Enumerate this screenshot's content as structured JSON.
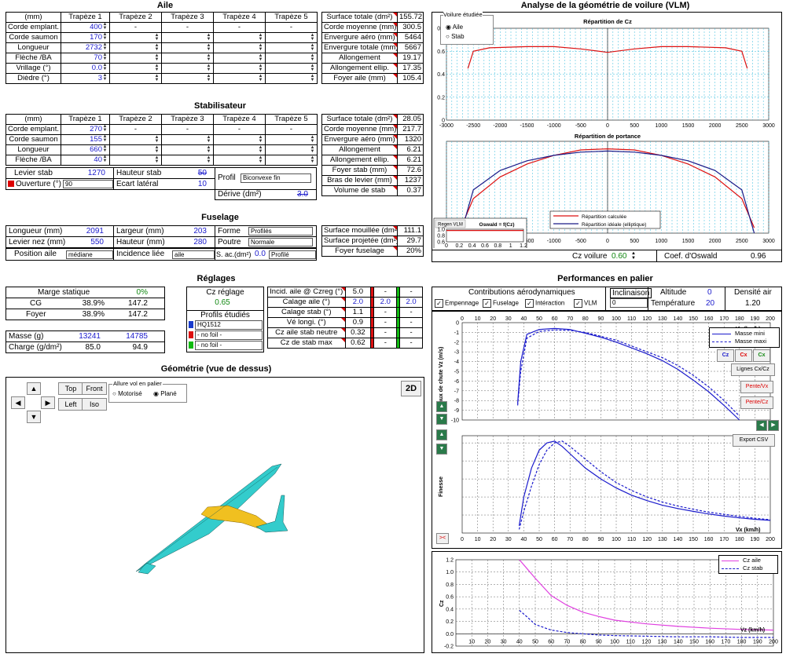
{
  "aile": {
    "title": "Aile",
    "header": [
      "(mm)",
      "Trapèze 1",
      "Trapèze 2",
      "Trapèze 3",
      "Trapèze 4",
      "Trapèze 5"
    ],
    "rows": [
      {
        "label": "Corde emplant.",
        "t1": "400",
        "t2": "-",
        "t3": "-",
        "t4": "-",
        "t5": "-"
      },
      {
        "label": "Corde saumon",
        "t1": "170",
        "t2": "",
        "t3": "",
        "t4": "",
        "t5": ""
      },
      {
        "label": "Longueur",
        "t1": "2732",
        "t2": "",
        "t3": "",
        "t4": "",
        "t5": ""
      },
      {
        "label": "Flèche /BA",
        "t1": "70",
        "t2": "",
        "t3": "",
        "t4": "",
        "t5": ""
      },
      {
        "label": "Vrillage (°)",
        "t1": "0.0",
        "t2": "",
        "t3": "",
        "t4": "",
        "t5": ""
      },
      {
        "label": "Dièdre (°)",
        "t1": "3",
        "t2": "",
        "t3": "",
        "t4": "",
        "t5": ""
      }
    ],
    "stats": [
      {
        "label": "Surface totale (dm²)",
        "value": "155.72"
      },
      {
        "label": "Corde moyenne (mm)",
        "value": "300.5"
      },
      {
        "label": "Envergure aéro (mm)",
        "value": "5464"
      },
      {
        "label": "Envergure totale (mm)",
        "value": "5667"
      },
      {
        "label": "Allongement",
        "value": "19.17"
      },
      {
        "label": "Allongement ellip.",
        "value": "17.35"
      },
      {
        "label": "Foyer aile (mm)",
        "value": "105.4"
      }
    ]
  },
  "stab": {
    "title": "Stabilisateur",
    "header": [
      "(mm)",
      "Trapèze 1",
      "Trapèze 2",
      "Trapèze 3",
      "Trapèze 4",
      "Trapèze 5"
    ],
    "rows": [
      {
        "label": "Corde emplant.",
        "t1": "270",
        "t2": "-",
        "t3": "-",
        "t4": "-",
        "t5": "-"
      },
      {
        "label": "Corde saumon",
        "t1": "155"
      },
      {
        "label": "Longueur",
        "t1": "660"
      },
      {
        "label": "Flèche /BA",
        "t1": "40"
      }
    ],
    "levier_label": "Levier stab",
    "levier_value": "1270",
    "hauteur_label": "Hauteur stab",
    "hauteur_value": "50",
    "ouverture_label": "Ouverture (°)",
    "ouverture_value": "90",
    "ecart_label": "Ecart latéral",
    "ecart_value": "10",
    "profil_label": "Profil",
    "profil_value": "Biconvexe fin",
    "derive_label": "Dérive (dm²)",
    "derive_value": "3.0",
    "stats": [
      {
        "label": "Surface totale (dm²)",
        "value": "28.05"
      },
      {
        "label": "Corde moyenne (mm)",
        "value": "217.7"
      },
      {
        "label": "Envergure aéro (mm)",
        "value": "1320"
      },
      {
        "label": "Allongement",
        "value": "6.21"
      },
      {
        "label": "Allongement ellip.",
        "value": "6.21"
      },
      {
        "label": "Foyer stab (mm)",
        "value": "72.6"
      },
      {
        "label": "Bras de levier (mm)",
        "value": "1237"
      },
      {
        "label": "Volume de stab",
        "value": "0.37"
      }
    ]
  },
  "fuselage": {
    "title": "Fuselage",
    "longueur_label": "Longueur (mm)",
    "longueur_value": "2091",
    "largeur_label": "Largeur (mm)",
    "largeur_value": "203",
    "forme_label": "Forme",
    "forme_value": "Profilés",
    "levier_nez_label": "Levier nez (mm)",
    "levier_nez_value": "550",
    "hauteur_label": "Hauteur (mm)",
    "hauteur_value": "280",
    "poutre_label": "Poutre",
    "poutre_value": "Normale",
    "position_label": "Position aile",
    "position_value": "médiane",
    "incidence_label": "Incidence liée",
    "incidence_value": "aile",
    "sac_label": "S. ac.(dm²)",
    "sac_value": "0.0",
    "sac_select": "Profilé",
    "stats": [
      {
        "label": "Surface mouillée (dm²)",
        "value": "111.1"
      },
      {
        "label": "Surface projetée (dm²)",
        "value": "29.7"
      },
      {
        "label": "Foyer fuselage",
        "value": "20%"
      }
    ]
  },
  "reglages": {
    "title": "Réglages",
    "marge_label": "Marge statique",
    "marge_value": "0%",
    "cg_label": "CG",
    "cg_pct": "38.9%",
    "cg_mm": "147.2",
    "foyer_label": "Foyer",
    "foyer_pct": "38.9%",
    "foyer_mm": "147.2",
    "masse_label": "Masse (g)",
    "masse_min": "13241",
    "masse_max": "14785",
    "charge_label": "Charge (g/dm²)",
    "charge_min": "85.0",
    "charge_max": "94.9",
    "cz_reglage_label": "Cz réglage",
    "cz_reglage_value": "0.65",
    "profils_label": "Profils étudiés",
    "profils": [
      {
        "name": "HQ1512",
        "color": "#1a3ccc"
      },
      {
        "name": "- no foil -",
        "color": "#dd1111"
      },
      {
        "name": "- no foil -",
        "color": "#11bb11"
      }
    ],
    "params": [
      {
        "label": "Incid. aile @ Czreg (°)",
        "v1": "5.0",
        "v2": "-",
        "v3": "-"
      },
      {
        "label": "Calage aile (°)",
        "v1": "2.0",
        "v2": "2.0",
        "v3": "2.0"
      },
      {
        "label": "Calage stab (°)",
        "v1": "1.1",
        "v2": "-",
        "v3": "-"
      },
      {
        "label": "Vé longi. (°)",
        "v1": "0.9",
        "v2": "-",
        "v3": "-"
      },
      {
        "label": "Cz aile stab neutre",
        "v1": "0.32",
        "v2": "-",
        "v3": "-"
      },
      {
        "label": "Cz de stab max",
        "v1": "0.62",
        "v2": "-",
        "v3": "-"
      }
    ]
  },
  "geometrie": {
    "title": "Géométrie (vue de dessus)",
    "btn_top": "Top",
    "btn_front": "Front",
    "btn_left": "Left",
    "btn_iso": "Iso",
    "btn_2d": "2D",
    "allure_label": "Allure vol en palier",
    "opt_motorise": "Motorisé",
    "opt_plane": "Plané"
  },
  "vlm": {
    "title": "Analyse de la géométrie de voilure (VLM)",
    "voilure_label": "Voilure étudiée",
    "opt_aile": "Aile",
    "opt_stab": "Stab",
    "cz_title": "Répartition de Cz",
    "portance_title": "Répartition de portance",
    "legend_calc": "Répartition calculée",
    "legend_ideal": "Répartition idéale (elliptique)",
    "regen_btn": "Regen VLM",
    "oswald_title": "Oswald = f(Cz)",
    "cz_voilure_label": "Cz voilure",
    "cz_voilure_value": "0.60",
    "coef_oswald_label": "Coef. d'Oswald",
    "coef_oswald_value": "0.96"
  },
  "perf": {
    "title": "Performances en palier",
    "contrib_label": "Contributions aérodynamiques",
    "chk_empennage": "Empennage",
    "chk_fuselage": "Fuselage",
    "chk_interaction": "Intéraction",
    "chk_vlm": "VLM",
    "inclinaison_label": "Inclinaison",
    "inclinaison_value": "0",
    "altitude_label": "Altitude",
    "altitude_value": "0",
    "temperature_label": "Température",
    "temperature_value": "20",
    "densite_label": "Densité air",
    "densite_value": "1.20",
    "legend_min": "Masse mini",
    "legend_max": "Masse maxi",
    "btn_cz": "Cz",
    "btn_cx": "Cx",
    "btn_cx2": "Cx",
    "btn_lignes": "Lignes Cx/Cz",
    "btn_pente_vx": "Pente/Vx",
    "btn_pente_cz": "Pente/Cz",
    "btn_export": "Export CSV",
    "btn_swap": "><",
    "vz_ylabel": "Taux de chute Vz (m/s)",
    "finesse_ylabel": "Finesse",
    "cz_ylabel": "Cz",
    "vx_label": "Vx (km/h)",
    "legend_cz_aile": "Cz aile",
    "legend_cz_stab": "Cz stab"
  },
  "chart_data": [
    {
      "type": "line",
      "title": "Répartition de Cz",
      "ylim": [
        0,
        0.8
      ],
      "xlim": [
        -3000,
        3000
      ],
      "x": [
        -2600,
        -2500,
        -2200,
        -1500,
        -1000,
        -500,
        0,
        500,
        1000,
        1500,
        2200,
        2500,
        2600
      ],
      "series": [
        {
          "values": [
            0.45,
            0.6,
            0.63,
            0.64,
            0.64,
            0.62,
            0.59,
            0.62,
            0.64,
            0.64,
            0.63,
            0.6,
            0.45
          ]
        }
      ]
    },
    {
      "type": "line",
      "title": "Répartition de portance",
      "xlim": [
        -3000,
        3000
      ],
      "x": [
        -2730,
        -2500,
        -2000,
        -1500,
        -1000,
        -500,
        0,
        500,
        1000,
        1500,
        2000,
        2500,
        2730
      ],
      "series": [
        {
          "name": "Répartition calculée",
          "values": [
            0.05,
            0.32,
            0.52,
            0.64,
            0.72,
            0.77,
            0.78,
            0.77,
            0.72,
            0.64,
            0.52,
            0.32,
            0.05
          ]
        },
        {
          "name": "Répartition idéale (elliptique)",
          "values": [
            0.0,
            0.4,
            0.58,
            0.67,
            0.72,
            0.75,
            0.76,
            0.75,
            0.72,
            0.67,
            0.58,
            0.4,
            0.0
          ]
        }
      ]
    },
    {
      "type": "line",
      "title": "Oswald = f(Cz)",
      "xlim": [
        0,
        1.2
      ],
      "ylim": [
        0.6,
        1.0
      ],
      "x": [
        0,
        1.2
      ],
      "series": [
        {
          "values": [
            0.96,
            0.96
          ]
        }
      ]
    },
    {
      "type": "line",
      "xlabel": "Vx (km/h)",
      "ylabel": "Taux de chute Vz (m/s)",
      "xlim": [
        0,
        200
      ],
      "ylim": [
        -10,
        0
      ],
      "x": [
        36,
        38,
        42,
        50,
        60,
        70,
        80,
        90,
        100,
        110,
        120,
        130,
        140,
        150,
        160,
        170,
        180
      ],
      "series": [
        {
          "name": "Masse mini",
          "values": [
            -8.3,
            -4,
            -1.2,
            -0.7,
            -0.6,
            -0.7,
            -1.1,
            -1.5,
            -2,
            -2.6,
            -3.2,
            -3.9,
            -4.8,
            -5.9,
            -7.1,
            -8.5,
            -10
          ]
        },
        {
          "name": "Masse maxi",
          "values": [
            -8.5,
            -5,
            -1.6,
            -0.9,
            -0.75,
            -0.8,
            -1,
            -1.4,
            -1.8,
            -2.4,
            -3,
            -3.6,
            -4.4,
            -5.4,
            -6.6,
            -8,
            -9.6
          ]
        }
      ]
    },
    {
      "type": "line",
      "xlabel": "Vx (km/h)",
      "ylabel": "Finesse",
      "xlim": [
        0,
        200
      ],
      "x": [
        37,
        40,
        45,
        50,
        55,
        60,
        65,
        70,
        80,
        90,
        100,
        110,
        120,
        130,
        140,
        150,
        160,
        170,
        180,
        190,
        200
      ],
      "series": [
        {
          "name": "Masse mini",
          "values": [
            2,
            10,
            18,
            23,
            25,
            25.5,
            24,
            22,
            18,
            15,
            12.5,
            10.5,
            9,
            7.7,
            6.8,
            6,
            5.3,
            4.7,
            4.2,
            3.8,
            3.5
          ]
        },
        {
          "name": "Masse maxi",
          "values": [
            1,
            6,
            13,
            19,
            23,
            25,
            25.5,
            24,
            20.5,
            17,
            14,
            11.8,
            10,
            8.6,
            7.5,
            6.6,
            5.8,
            5.2,
            4.6,
            4.1,
            3.7
          ]
        }
      ]
    },
    {
      "type": "line",
      "xlabel": "Vz (km/h)",
      "ylabel": "Cz",
      "xlim": [
        0,
        200
      ],
      "ylim": [
        -0.2,
        1.2
      ],
      "x": [
        40,
        45,
        50,
        60,
        70,
        80,
        90,
        100,
        120,
        140,
        160,
        180,
        200
      ],
      "series": [
        {
          "name": "Cz aile",
          "values": [
            1.2,
            1.05,
            0.9,
            0.62,
            0.46,
            0.35,
            0.28,
            0.22,
            0.16,
            0.12,
            0.09,
            0.07,
            0.06
          ]
        },
        {
          "name": "Cz stab",
          "values": [
            0.38,
            0.27,
            0.15,
            0.06,
            0.02,
            0,
            -0.02,
            -0.03,
            -0.04,
            -0.05,
            -0.05,
            -0.06,
            -0.06
          ]
        }
      ]
    }
  ]
}
